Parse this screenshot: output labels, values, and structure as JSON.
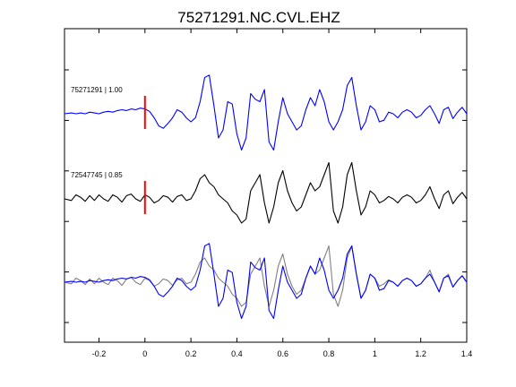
{
  "chart_data": {
    "type": "line",
    "title": "75271291.NC.CVL.EHZ",
    "xlabel": "",
    "ylabel": "",
    "xlim": [
      -0.35,
      1.4
    ],
    "xticks": [
      -0.2,
      0,
      0.2,
      0.4,
      0.6,
      0.8,
      1,
      1.2,
      1.4
    ],
    "xtick_labels": [
      "-0.2",
      "0",
      "0.2",
      "0.4",
      "0.6",
      "0.8",
      "1",
      "1.2",
      "1.4"
    ],
    "ytick_count": 6,
    "pick_time": 0,
    "grid": false,
    "legend": "none",
    "colors": {
      "primary": "#0000ff",
      "secondary": "#000000",
      "secondary_overlay": "#808080",
      "pick": "#ff0000",
      "axes": "#000000"
    },
    "panels": [
      {
        "label": "75271291 | 1.00",
        "color": "#0000ff",
        "series": [
          {
            "x": [
              -0.35,
              -0.32,
              -0.3,
              -0.28,
              -0.26,
              -0.24,
              -0.22,
              -0.2,
              -0.18,
              -0.16,
              -0.14,
              -0.12,
              -0.1,
              -0.08,
              -0.06,
              -0.04,
              -0.02,
              0,
              0.02,
              0.04,
              0.06,
              0.08,
              0.1,
              0.12,
              0.14,
              0.16,
              0.18,
              0.2,
              0.22,
              0.24,
              0.26,
              0.28,
              0.3,
              0.32,
              0.34,
              0.36,
              0.38,
              0.4,
              0.42,
              0.44,
              0.46,
              0.48,
              0.5,
              0.52,
              0.54,
              0.56,
              0.58,
              0.6,
              0.62,
              0.64,
              0.66,
              0.68,
              0.7,
              0.72,
              0.74,
              0.76,
              0.78,
              0.8,
              0.82,
              0.84,
              0.86,
              0.88,
              0.9,
              0.92,
              0.94,
              0.96,
              0.98,
              1.0,
              1.02,
              1.04,
              1.06,
              1.08,
              1.1,
              1.12,
              1.14,
              1.16,
              1.18,
              1.2,
              1.22,
              1.24,
              1.26,
              1.28,
              1.3,
              1.32,
              1.34,
              1.36,
              1.38,
              1.4
            ],
            "y": [
              0,
              0.01,
              0.0,
              0.01,
              0.0,
              0.02,
              0.01,
              0.0,
              0.02,
              0.03,
              0.02,
              0.04,
              0.05,
              0.04,
              0.06,
              0.05,
              0.07,
              0.06,
              0.03,
              -0.05,
              -0.15,
              -0.18,
              -0.12,
              -0.05,
              0.05,
              0.02,
              -0.05,
              -0.1,
              -0.05,
              0.15,
              0.45,
              0.48,
              0.1,
              -0.3,
              -0.2,
              0.15,
              0.12,
              -0.25,
              -0.45,
              -0.3,
              0.25,
              0.18,
              0.15,
              0.3,
              -0.35,
              -0.45,
              -0.1,
              0.2,
              0.0,
              -0.1,
              -0.2,
              -0.15,
              0.05,
              0.2,
              0.1,
              0.3,
              0.15,
              -0.1,
              -0.2,
              -0.1,
              0.05,
              0.35,
              0.45,
              0.1,
              -0.2,
              -0.1,
              0.1,
              0.05,
              -0.1,
              -0.08,
              0.02,
              0.0,
              -0.05,
              0.02,
              0.05,
              0.02,
              -0.05,
              -0.02,
              0.05,
              0.1,
              0.0,
              -0.12,
              0.05,
              0.08,
              -0.06,
              0.02,
              0.08,
              0.0
            ]
          }
        ]
      },
      {
        "label": "72547745 | 0.85",
        "color": "#000000",
        "series": [
          {
            "x": [
              -0.35,
              -0.32,
              -0.3,
              -0.28,
              -0.26,
              -0.24,
              -0.22,
              -0.2,
              -0.18,
              -0.16,
              -0.14,
              -0.12,
              -0.1,
              -0.08,
              -0.06,
              -0.04,
              -0.02,
              0,
              0.02,
              0.04,
              0.06,
              0.08,
              0.1,
              0.12,
              0.14,
              0.16,
              0.18,
              0.2,
              0.22,
              0.24,
              0.26,
              0.28,
              0.3,
              0.32,
              0.34,
              0.36,
              0.38,
              0.4,
              0.42,
              0.44,
              0.46,
              0.48,
              0.5,
              0.52,
              0.54,
              0.56,
              0.58,
              0.6,
              0.62,
              0.64,
              0.66,
              0.68,
              0.7,
              0.72,
              0.74,
              0.76,
              0.78,
              0.8,
              0.82,
              0.84,
              0.86,
              0.88,
              0.9,
              0.92,
              0.94,
              0.96,
              0.98,
              1.0,
              1.02,
              1.04,
              1.06,
              1.08,
              1.1,
              1.12,
              1.14,
              1.16,
              1.18,
              1.2,
              1.22,
              1.24,
              1.26,
              1.28,
              1.3,
              1.32,
              1.34,
              1.36,
              1.38,
              1.4
            ],
            "y": [
              0,
              -0.02,
              0.05,
              0.02,
              -0.03,
              0.04,
              -0.02,
              0.05,
              0.0,
              -0.03,
              0.05,
              0.02,
              -0.04,
              0.04,
              0.06,
              0.0,
              -0.03,
              0.05,
              0.02,
              -0.05,
              -0.02,
              0.04,
              0.02,
              -0.04,
              0.03,
              0.05,
              -0.02,
              0.0,
              0.1,
              0.25,
              0.3,
              0.2,
              0.15,
              0.05,
              0.0,
              -0.05,
              -0.15,
              -0.2,
              -0.3,
              -0.25,
              0.1,
              0.2,
              0.3,
              -0.05,
              -0.3,
              -0.1,
              0.2,
              0.35,
              0.1,
              -0.05,
              -0.15,
              -0.1,
              0.05,
              0.2,
              0.1,
              0.15,
              0.3,
              0.45,
              -0.15,
              -0.3,
              -0.1,
              0.3,
              0.45,
              0.1,
              -0.2,
              -0.1,
              0.1,
              0.05,
              -0.05,
              -0.02,
              0.03,
              0.0,
              -0.05,
              0.02,
              0.05,
              0.02,
              -0.05,
              -0.02,
              0.05,
              0.15,
              0.0,
              -0.12,
              0.05,
              0.1,
              -0.06,
              0.02,
              0.08,
              0.0
            ]
          }
        ]
      },
      {
        "label": "",
        "color": "#0000ff",
        "series": [
          {
            "color": "#808080",
            "x": [
              -0.35,
              -0.32,
              -0.3,
              -0.28,
              -0.26,
              -0.24,
              -0.22,
              -0.2,
              -0.18,
              -0.16,
              -0.14,
              -0.12,
              -0.1,
              -0.08,
              -0.06,
              -0.04,
              -0.02,
              0,
              0.02,
              0.04,
              0.06,
              0.08,
              0.1,
              0.12,
              0.14,
              0.16,
              0.18,
              0.2,
              0.22,
              0.24,
              0.26,
              0.28,
              0.3,
              0.32,
              0.34,
              0.36,
              0.38,
              0.4,
              0.42,
              0.44,
              0.46,
              0.48,
              0.5,
              0.52,
              0.54,
              0.56,
              0.58,
              0.6,
              0.62,
              0.64,
              0.66,
              0.68,
              0.7,
              0.72,
              0.74,
              0.76,
              0.78,
              0.8,
              0.82,
              0.84,
              0.86,
              0.88,
              0.9,
              0.92,
              0.94,
              0.96,
              0.98,
              1.0,
              1.02,
              1.04,
              1.06,
              1.08,
              1.1,
              1.12,
              1.14,
              1.16,
              1.18,
              1.2,
              1.22,
              1.24,
              1.26,
              1.28,
              1.3,
              1.32,
              1.34,
              1.36,
              1.38,
              1.4
            ],
            "y": [
              0,
              -0.02,
              0.05,
              0.02,
              -0.03,
              0.04,
              -0.02,
              0.05,
              0.0,
              -0.03,
              0.05,
              0.02,
              -0.04,
              0.04,
              0.06,
              0.0,
              -0.03,
              0.05,
              0.02,
              -0.05,
              -0.02,
              0.04,
              0.02,
              -0.04,
              0.03,
              0.05,
              -0.02,
              0.0,
              0.1,
              0.25,
              0.3,
              0.2,
              0.15,
              0.05,
              0.0,
              -0.05,
              -0.15,
              -0.2,
              -0.3,
              -0.25,
              0.1,
              0.2,
              0.3,
              -0.05,
              -0.3,
              -0.1,
              0.2,
              0.35,
              0.1,
              -0.05,
              -0.15,
              -0.1,
              0.05,
              0.2,
              0.1,
              0.15,
              0.3,
              0.45,
              -0.15,
              -0.3,
              -0.1,
              0.3,
              0.45,
              0.1,
              -0.2,
              -0.1,
              0.1,
              0.05,
              -0.05,
              -0.02,
              0.03,
              0.0,
              -0.05,
              0.02,
              0.05,
              0.02,
              -0.05,
              -0.02,
              0.05,
              0.15,
              0.0,
              -0.12,
              0.05,
              0.1,
              -0.06,
              0.02,
              0.08,
              0.0
            ]
          },
          {
            "color": "#0000ff",
            "x": [
              -0.35,
              -0.32,
              -0.3,
              -0.28,
              -0.26,
              -0.24,
              -0.22,
              -0.2,
              -0.18,
              -0.16,
              -0.14,
              -0.12,
              -0.1,
              -0.08,
              -0.06,
              -0.04,
              -0.02,
              0,
              0.02,
              0.04,
              0.06,
              0.08,
              0.1,
              0.12,
              0.14,
              0.16,
              0.18,
              0.2,
              0.22,
              0.24,
              0.26,
              0.28,
              0.3,
              0.32,
              0.34,
              0.36,
              0.38,
              0.4,
              0.42,
              0.44,
              0.46,
              0.48,
              0.5,
              0.52,
              0.54,
              0.56,
              0.58,
              0.6,
              0.62,
              0.64,
              0.66,
              0.68,
              0.7,
              0.72,
              0.74,
              0.76,
              0.78,
              0.8,
              0.82,
              0.84,
              0.86,
              0.88,
              0.9,
              0.92,
              0.94,
              0.96,
              0.98,
              1.0,
              1.02,
              1.04,
              1.06,
              1.08,
              1.1,
              1.12,
              1.14,
              1.16,
              1.18,
              1.2,
              1.22,
              1.24,
              1.26,
              1.28,
              1.3,
              1.32,
              1.34,
              1.36,
              1.38,
              1.4
            ],
            "y": [
              0,
              0.01,
              0.0,
              0.01,
              0.0,
              0.02,
              0.01,
              0.0,
              0.02,
              0.03,
              0.02,
              0.04,
              0.05,
              0.04,
              0.06,
              0.05,
              0.07,
              0.06,
              0.03,
              -0.05,
              -0.15,
              -0.18,
              -0.12,
              -0.05,
              0.05,
              0.02,
              -0.05,
              -0.1,
              -0.05,
              0.15,
              0.45,
              0.48,
              0.1,
              -0.3,
              -0.2,
              0.15,
              0.12,
              -0.25,
              -0.45,
              -0.3,
              0.25,
              0.18,
              0.15,
              0.3,
              -0.35,
              -0.45,
              -0.1,
              0.2,
              0.0,
              -0.1,
              -0.2,
              -0.15,
              0.05,
              0.2,
              0.1,
              0.3,
              0.15,
              -0.1,
              -0.2,
              -0.1,
              0.05,
              0.35,
              0.45,
              0.1,
              -0.2,
              -0.1,
              0.1,
              0.05,
              -0.1,
              -0.08,
              0.02,
              0.0,
              -0.05,
              0.02,
              0.05,
              0.02,
              -0.05,
              -0.02,
              0.05,
              0.1,
              0.0,
              -0.12,
              0.05,
              0.08,
              -0.06,
              0.02,
              0.08,
              0.0
            ]
          }
        ]
      }
    ]
  }
}
